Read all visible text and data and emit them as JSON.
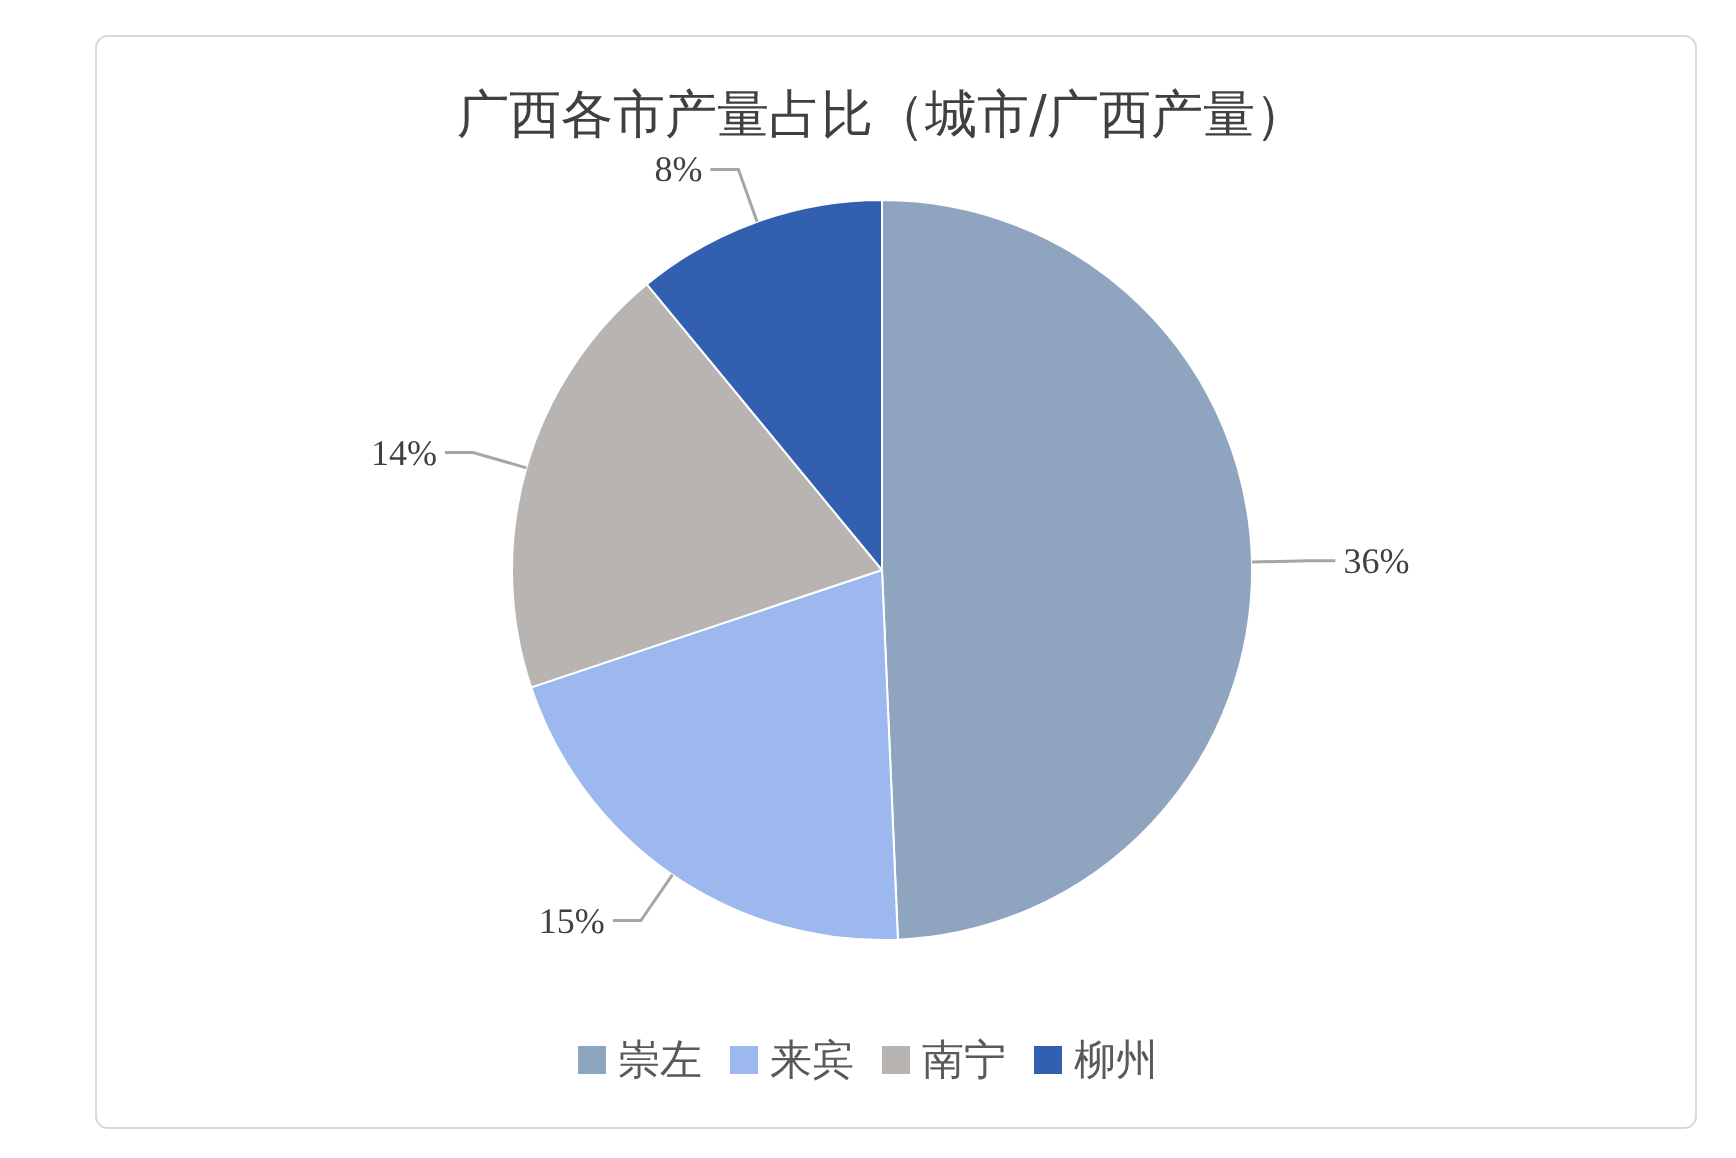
{
  "chart_data": {
    "type": "pie",
    "title": "广西各市产量占比（城市/广西产量）",
    "categories": [
      "崇左",
      "来宾",
      "南宁",
      "柳州"
    ],
    "values": [
      36,
      15,
      14,
      8
    ],
    "colors": [
      "#8fa4bf",
      "#9db8ee",
      "#b8b4b2",
      "#335fb0"
    ],
    "value_labels": [
      "36%",
      "15%",
      "14%",
      "8%"
    ],
    "legend": "bottom"
  }
}
